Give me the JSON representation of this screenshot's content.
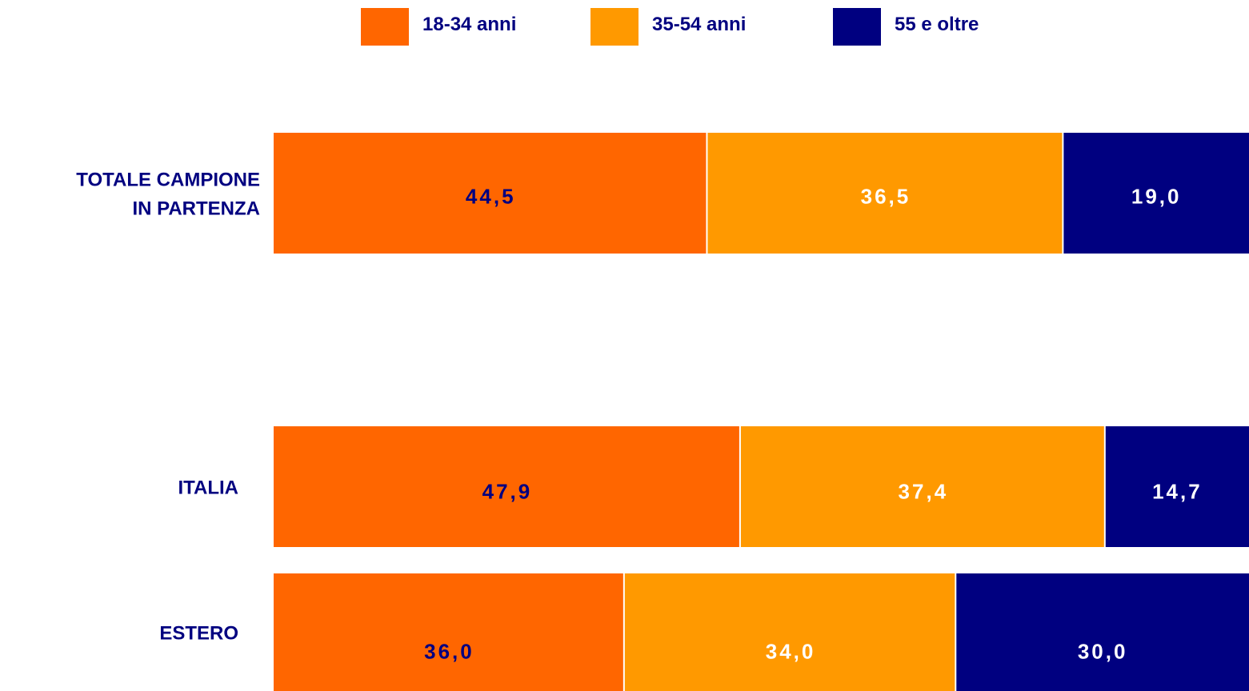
{
  "chart_data": {
    "type": "bar",
    "orientation": "horizontal",
    "stacked": true,
    "normalized": true,
    "categories": [
      "TOTALE CAMPIONE\nIN PARTENZA",
      "ITALIA",
      "ESTERO"
    ],
    "series": [
      {
        "name": "18-34 anni",
        "color": "#ff6600",
        "label_color": "#000080",
        "values": [
          44.5,
          47.9,
          36.0
        ],
        "labels": [
          "44,5",
          "47,9",
          "36,0"
        ]
      },
      {
        "name": "35-54 anni",
        "color": "#ff9900",
        "label_color": "#ffffff",
        "values": [
          36.5,
          37.4,
          34.0
        ],
        "labels": [
          "36,5",
          "37,4",
          "34,0"
        ]
      },
      {
        "name": "55 e oltre",
        "color": "#000080",
        "label_color": "#ffffff",
        "values": [
          19.0,
          14.7,
          30.0
        ],
        "labels": [
          "19,0",
          "14,7",
          "30,0"
        ]
      }
    ],
    "xlim": [
      0,
      100
    ],
    "legend_position": "top",
    "grid": false,
    "category_label_color": "#000080"
  }
}
